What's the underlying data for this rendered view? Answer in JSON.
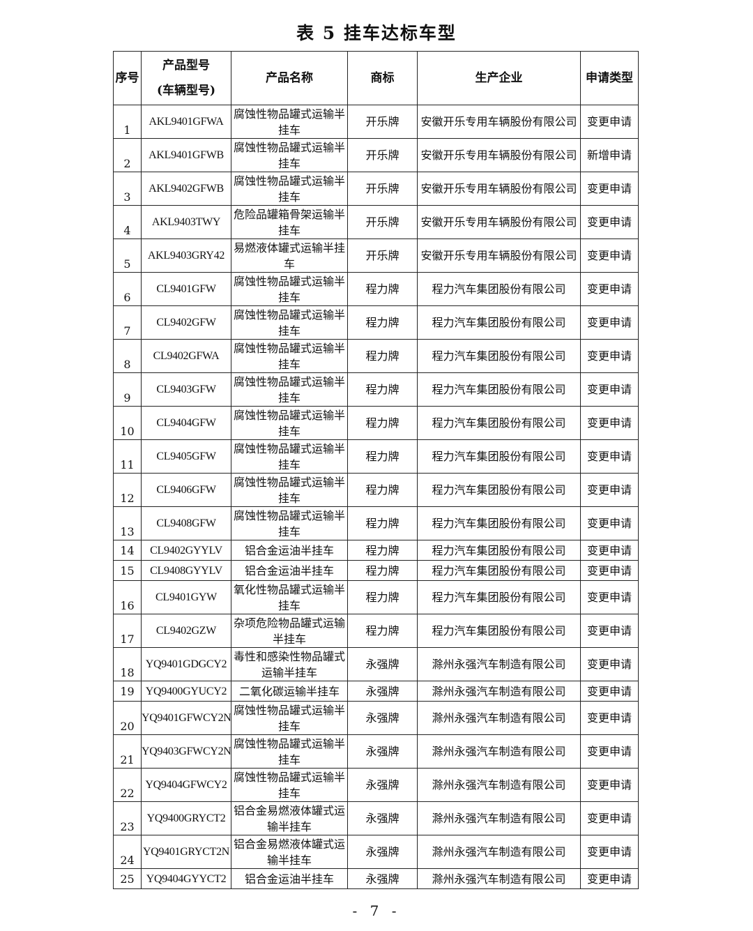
{
  "title": "表 5   挂车达标车型",
  "headers": {
    "index": "序号",
    "model_line1": "产品型号",
    "model_line2": "(车辆型号)",
    "name": "产品名称",
    "brand": "商标",
    "company": "生产企业",
    "type": "申请类型"
  },
  "rows": [
    {
      "no": "1",
      "model": "AKL9401GFWA",
      "name": "腐蚀性物品罐式运输半挂车",
      "brand": "开乐牌",
      "company": "安徽开乐专用车辆股份有限公司",
      "type": "变更申请"
    },
    {
      "no": "2",
      "model": "AKL9401GFWB",
      "name": "腐蚀性物品罐式运输半挂车",
      "brand": "开乐牌",
      "company": "安徽开乐专用车辆股份有限公司",
      "type": "新增申请"
    },
    {
      "no": "3",
      "model": "AKL9402GFWB",
      "name": "腐蚀性物品罐式运输半挂车",
      "brand": "开乐牌",
      "company": "安徽开乐专用车辆股份有限公司",
      "type": "变更申请"
    },
    {
      "no": "4",
      "model": "AKL9403TWY",
      "name": "危险品罐箱骨架运输半挂车",
      "brand": "开乐牌",
      "company": "安徽开乐专用车辆股份有限公司",
      "type": "变更申请"
    },
    {
      "no": "5",
      "model": "AKL9403GRY42",
      "name": "易燃液体罐式运输半挂车",
      "brand": "开乐牌",
      "company": "安徽开乐专用车辆股份有限公司",
      "type": "变更申请"
    },
    {
      "no": "6",
      "model": "CL9401GFW",
      "name": "腐蚀性物品罐式运输半挂车",
      "brand": "程力牌",
      "company": "程力汽车集团股份有限公司",
      "type": "变更申请"
    },
    {
      "no": "7",
      "model": "CL9402GFW",
      "name": "腐蚀性物品罐式运输半挂车",
      "brand": "程力牌",
      "company": "程力汽车集团股份有限公司",
      "type": "变更申请"
    },
    {
      "no": "8",
      "model": "CL9402GFWA",
      "name": "腐蚀性物品罐式运输半挂车",
      "brand": "程力牌",
      "company": "程力汽车集团股份有限公司",
      "type": "变更申请"
    },
    {
      "no": "9",
      "model": "CL9403GFW",
      "name": "腐蚀性物品罐式运输半挂车",
      "brand": "程力牌",
      "company": "程力汽车集团股份有限公司",
      "type": "变更申请"
    },
    {
      "no": "10",
      "model": "CL9404GFW",
      "name": "腐蚀性物品罐式运输半挂车",
      "brand": "程力牌",
      "company": "程力汽车集团股份有限公司",
      "type": "变更申请"
    },
    {
      "no": "11",
      "model": "CL9405GFW",
      "name": "腐蚀性物品罐式运输半挂车",
      "brand": "程力牌",
      "company": "程力汽车集团股份有限公司",
      "type": "变更申请"
    },
    {
      "no": "12",
      "model": "CL9406GFW",
      "name": "腐蚀性物品罐式运输半挂车",
      "brand": "程力牌",
      "company": "程力汽车集团股份有限公司",
      "type": "变更申请"
    },
    {
      "no": "13",
      "model": "CL9408GFW",
      "name": "腐蚀性物品罐式运输半挂车",
      "brand": "程力牌",
      "company": "程力汽车集团股份有限公司",
      "type": "变更申请"
    },
    {
      "no": "14",
      "model": "CL9402GYYLV",
      "name": "铝合金运油半挂车",
      "brand": "程力牌",
      "company": "程力汽车集团股份有限公司",
      "type": "变更申请"
    },
    {
      "no": "15",
      "model": "CL9408GYYLV",
      "name": "铝合金运油半挂车",
      "brand": "程力牌",
      "company": "程力汽车集团股份有限公司",
      "type": "变更申请"
    },
    {
      "no": "16",
      "model": "CL9401GYW",
      "name": "氧化性物品罐式运输半挂车",
      "brand": "程力牌",
      "company": "程力汽车集团股份有限公司",
      "type": "变更申请"
    },
    {
      "no": "17",
      "model": "CL9402GZW",
      "name": "杂项危险物品罐式运输半挂车",
      "brand": "程力牌",
      "company": "程力汽车集团股份有限公司",
      "type": "变更申请"
    },
    {
      "no": "18",
      "model": "YQ9401GDGCY2",
      "name": "毒性和感染性物品罐式运输半挂车",
      "brand": "永强牌",
      "company": "滁州永强汽车制造有限公司",
      "type": "变更申请"
    },
    {
      "no": "19",
      "model": "YQ9400GYUCY2",
      "name": "二氧化碳运输半挂车",
      "brand": "永强牌",
      "company": "滁州永强汽车制造有限公司",
      "type": "变更申请"
    },
    {
      "no": "20",
      "model": "YQ9401GFWCY2N",
      "name": "腐蚀性物品罐式运输半挂车",
      "brand": "永强牌",
      "company": "滁州永强汽车制造有限公司",
      "type": "变更申请"
    },
    {
      "no": "21",
      "model": "YQ9403GFWCY2N",
      "name": "腐蚀性物品罐式运输半挂车",
      "brand": "永强牌",
      "company": "滁州永强汽车制造有限公司",
      "type": "变更申请"
    },
    {
      "no": "22",
      "model": "YQ9404GFWCY2",
      "name": "腐蚀性物品罐式运输半挂车",
      "brand": "永强牌",
      "company": "滁州永强汽车制造有限公司",
      "type": "变更申请"
    },
    {
      "no": "23",
      "model": "YQ9400GRYCT2",
      "name": "铝合金易燃液体罐式运输半挂车",
      "brand": "永强牌",
      "company": "滁州永强汽车制造有限公司",
      "type": "变更申请"
    },
    {
      "no": "24",
      "model": "YQ9401GRYCT2N",
      "name": "铝合金易燃液体罐式运输半挂车",
      "brand": "永强牌",
      "company": "滁州永强汽车制造有限公司",
      "type": "变更申请"
    },
    {
      "no": "25",
      "model": "YQ9404GYYCT2",
      "name": "铝合金运油半挂车",
      "brand": "永强牌",
      "company": "滁州永强汽车制造有限公司",
      "type": "变更申请"
    }
  ],
  "page_number": "- 7 -"
}
